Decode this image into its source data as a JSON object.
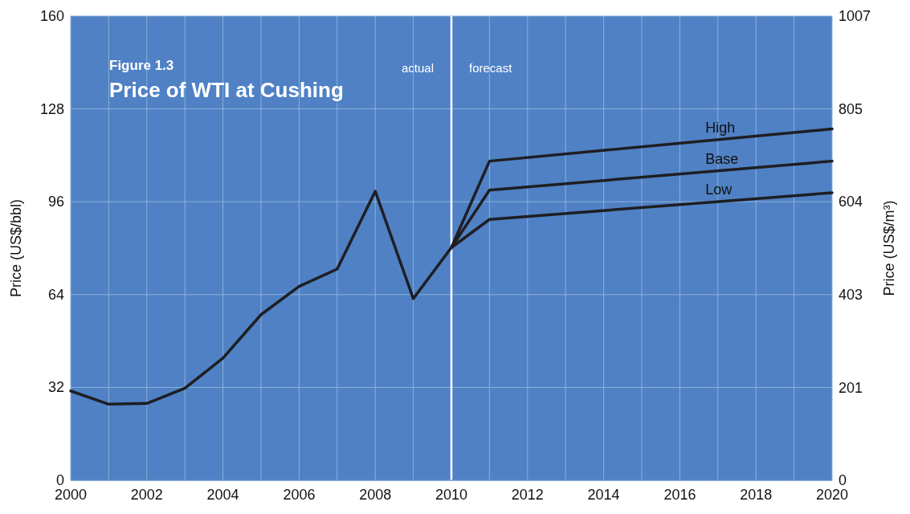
{
  "chart_data": {
    "type": "line",
    "subtitle": "Figure 1.3",
    "title": "Price of WTI at Cushing",
    "ylabel": "Price (US$/bbl)",
    "y2label": "Price (US$/m³)",
    "series": [
      {
        "name": "High",
        "color": "#1e1e22",
        "x": [
          2010,
          2011,
          2020
        ],
        "values": [
          80.2,
          110.0,
          121.1
        ]
      },
      {
        "name": "Base",
        "color": "#1e1e22",
        "x": [
          2000,
          2001,
          2002,
          2003,
          2004,
          2005,
          2006,
          2007,
          2008,
          2009,
          2010,
          2011,
          2020
        ],
        "values": [
          30.8,
          26.2,
          26.5,
          31.7,
          42.1,
          57.1,
          66.8,
          72.8,
          99.6,
          62.6,
          80.2,
          100.0,
          110.0
        ]
      },
      {
        "name": "Low",
        "color": "#1e1e22",
        "x": [
          2010,
          2011,
          2020
        ],
        "values": [
          80.2,
          89.9,
          99.1
        ]
      }
    ],
    "xlim": [
      2000,
      2020
    ],
    "xticks": [
      2000,
      {
        "value": 2001,
        "label": null
      },
      2002,
      {
        "value": 2003,
        "label": null
      },
      2004,
      {
        "value": 2005,
        "label": null
      },
      2006,
      {
        "value": 2007,
        "label": null
      },
      2008,
      {
        "value": 2009,
        "label": null
      },
      2010,
      {
        "value": 2011,
        "label": null
      },
      2012,
      {
        "value": 2013,
        "label": null
      },
      2014,
      {
        "value": 2015,
        "label": null
      },
      2016,
      {
        "value": 2017,
        "label": null
      },
      2018,
      {
        "value": 2019,
        "label": null
      },
      2020
    ],
    "ylim": [
      0,
      160
    ],
    "yticks": [
      0,
      32,
      64,
      96,
      128,
      160
    ],
    "y2lim": [
      0,
      1007
    ],
    "y2ticks": [
      0,
      201,
      403,
      604,
      805,
      1007
    ],
    "ref_lines": [
      {
        "axis": "x",
        "value": 2010,
        "color": "#ffffff"
      }
    ],
    "annotations": [
      "actual",
      "forecast"
    ],
    "grid": true,
    "line_style": "solid",
    "marker": "none"
  }
}
